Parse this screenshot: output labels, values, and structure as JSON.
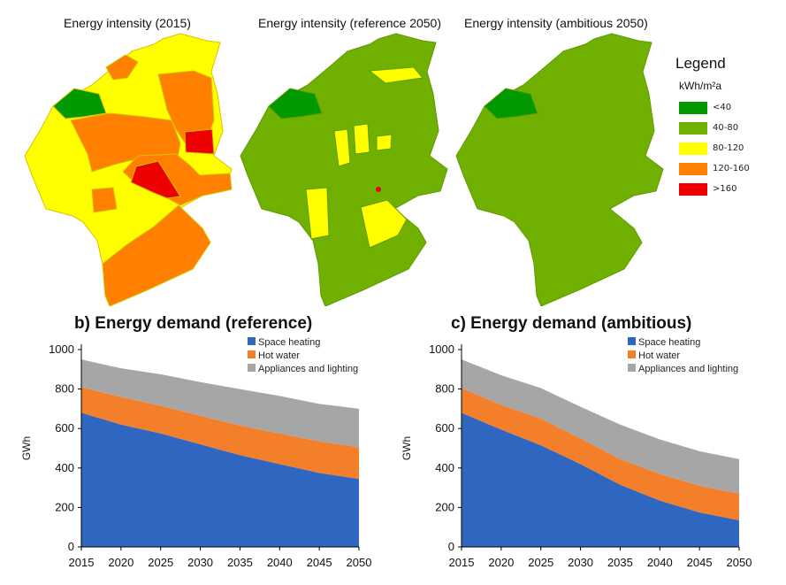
{
  "maps": {
    "titles": [
      "Energy intensity (2015)",
      "Energy intensity (reference 2050)",
      "Energy intensity (ambitious 2050)"
    ]
  },
  "legend": {
    "title": "Legend",
    "unit": "kWh/m²a",
    "items": [
      {
        "label": "<40",
        "color": "#009900"
      },
      {
        "label": "40-80",
        "color": "#70b000"
      },
      {
        "label": "80-120",
        "color": "#ffff00"
      },
      {
        "label": "120-160",
        "color": "#ff7f00"
      },
      {
        "label": ">160",
        "color": "#ee0000"
      }
    ]
  },
  "colors": {
    "space_heating": "#2f67c0",
    "hot_water": "#f47f2a",
    "appliances": "#a6a6a6"
  },
  "chart_data": [
    {
      "type": "area",
      "stacked": true,
      "title": "b) Energy demand (reference)",
      "ylabel": "GWh",
      "xlabel": "",
      "x": [
        2015,
        2020,
        2025,
        2030,
        2035,
        2040,
        2045,
        2050
      ],
      "ylim": [
        0,
        1000
      ],
      "yticks": [
        0,
        200,
        400,
        600,
        800,
        1000
      ],
      "legend_position": "top-right",
      "series": [
        {
          "name": "Space heating",
          "color": "#2f67c0",
          "values": [
            680,
            620,
            575,
            520,
            465,
            420,
            375,
            345
          ]
        },
        {
          "name": "Hot water",
          "color": "#f47f2a",
          "values": [
            130,
            140,
            140,
            145,
            150,
            155,
            160,
            160
          ]
        },
        {
          "name": "Appliances and lighting",
          "color": "#a6a6a6",
          "values": [
            140,
            145,
            160,
            170,
            185,
            190,
            190,
            195
          ]
        }
      ]
    },
    {
      "type": "area",
      "stacked": true,
      "title": "c) Energy demand (ambitious)",
      "ylabel": "GWh",
      "xlabel": "",
      "x": [
        2015,
        2020,
        2025,
        2030,
        2035,
        2040,
        2045,
        2050
      ],
      "ylim": [
        0,
        1000
      ],
      "yticks": [
        0,
        200,
        400,
        600,
        800,
        1000
      ],
      "legend_position": "top-right",
      "series": [
        {
          "name": "Space heating",
          "color": "#2f67c0",
          "values": [
            680,
            595,
            515,
            420,
            315,
            235,
            175,
            135
          ]
        },
        {
          "name": "Hot water",
          "color": "#f47f2a",
          "values": [
            125,
            125,
            135,
            130,
            130,
            135,
            135,
            135
          ]
        },
        {
          "name": "Appliances and lighting",
          "color": "#a6a6a6",
          "values": [
            145,
            150,
            155,
            160,
            175,
            175,
            175,
            175
          ]
        }
      ]
    }
  ]
}
